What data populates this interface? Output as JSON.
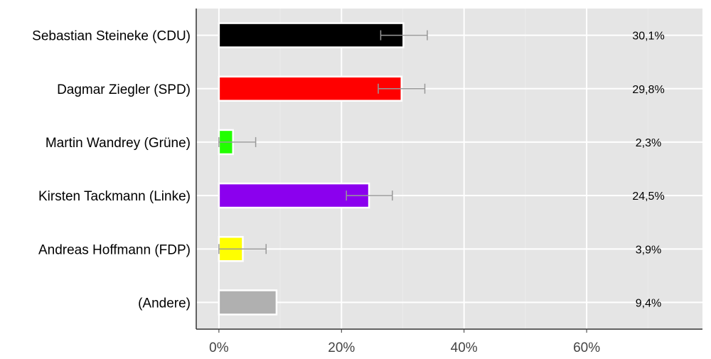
{
  "chart_data": {
    "type": "bar",
    "orientation": "horizontal",
    "title": "",
    "xlabel": "",
    "ylabel": "",
    "xlim": [
      -3.7,
      78.9
    ],
    "x_ticks": [
      0,
      20,
      40,
      60
    ],
    "x_tick_labels": [
      "0%",
      "20%",
      "40%",
      "60%"
    ],
    "grid": true,
    "categories": [
      "Sebastian Steineke (CDU)",
      "Dagmar Ziegler (SPD)",
      "Martin Wandrey (Grüne)",
      "Kirsten Tackmann (Linke)",
      "Andreas Hoffmann (FDP)",
      "(Andere)"
    ],
    "values": [
      30.1,
      29.8,
      2.3,
      24.5,
      3.9,
      9.4
    ],
    "value_labels": [
      "30,1%",
      "29,8%",
      "2,3%",
      "24,5%",
      "3,9%",
      "9,4%"
    ],
    "colors": [
      "#000000",
      "#ff0000",
      "#22ff00",
      "#8b00ee",
      "#ffff00",
      "#b0b0b0"
    ],
    "error_bars": [
      [
        26.4,
        34.0
      ],
      [
        26.0,
        33.6
      ],
      [
        0,
        6.0
      ],
      [
        20.8,
        28.3
      ],
      [
        0,
        7.7
      ],
      null
    ]
  }
}
